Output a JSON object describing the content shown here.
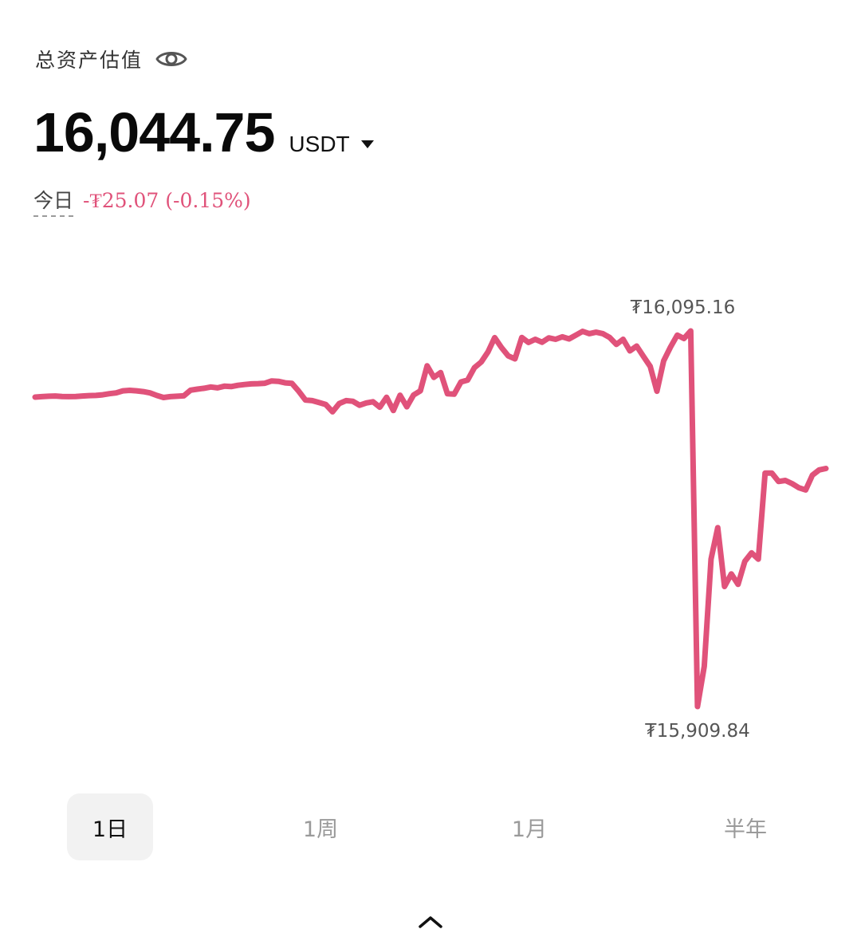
{
  "header": {
    "label": "总资产估值",
    "eye_icon": "eye-icon"
  },
  "balance": {
    "value": "16,044.75",
    "currency": "USDT",
    "caret_icon": "caret-down-icon"
  },
  "today": {
    "label": "今日",
    "change": "-₮25.07 (-0.15%)",
    "change_color": "#e0527a"
  },
  "colors": {
    "line": "#e0527a",
    "active_tab_bg": "#f2f2f2",
    "inactive_tab_text": "#9a9a9a"
  },
  "chart_data": {
    "type": "line",
    "title": "",
    "xlabel": "",
    "ylabel": "",
    "ylim": [
      15909.84,
      16095.16
    ],
    "grid": false,
    "annotations": [
      {
        "text": "₮16,095.16",
        "kind": "max"
      },
      {
        "text": "₮15,909.84",
        "kind": "min"
      }
    ],
    "series": [
      {
        "values": [
          16057.2,
          16057.4,
          16057.6,
          16057.7,
          16057.5,
          16057.4,
          16057.5,
          16057.7,
          16057.9,
          16058.0,
          16058.3,
          16058.8,
          16059.2,
          16060.2,
          16060.4,
          16060.2,
          16059.8,
          16059.2,
          16058.0,
          16057.0,
          16057.4,
          16057.6,
          16057.8,
          16060.5,
          16061.0,
          16061.4,
          16062.0,
          16061.6,
          16062.4,
          16062.2,
          16062.8,
          16063.2,
          16063.5,
          16063.6,
          16063.8,
          16064.9,
          16064.7,
          16064.0,
          16063.7,
          16060.0,
          16055.8,
          16055.5,
          16054.6,
          16053.7,
          16050.2,
          16054.1,
          16055.5,
          16055.2,
          16053.3,
          16054.4,
          16055.0,
          16052.4,
          16057.1,
          16050.8,
          16058.1,
          16052.6,
          16058.2,
          16060.2,
          16072.1,
          16066.6,
          16068.9,
          16058.8,
          16058.6,
          16064.4,
          16065.3,
          16071.2,
          16073.9,
          16078.7,
          16085.5,
          16080.8,
          16076.8,
          16075.4,
          16085.6,
          16083.2,
          16084.7,
          16083.3,
          16085.4,
          16084.7,
          16085.9,
          16084.9,
          16086.7,
          16088.5,
          16087.4,
          16088.1,
          16087.4,
          16085.6,
          16082.3,
          16084.7,
          16079.2,
          16081.5,
          16076.6,
          16071.8,
          16060.0,
          16074.5,
          16081.0,
          16086.7,
          16085.1,
          16088.7,
          15909.84,
          15929.0,
          15980.0,
          15995.0,
          15967.0,
          15973.0,
          15968.0,
          15979.0,
          15983.0,
          15980.0,
          16021.0,
          16021.0,
          16017.0,
          16017.5,
          16016.0,
          16014.0,
          16013.0,
          16020.0,
          16022.5,
          16023.2
        ]
      }
    ]
  },
  "tabs": [
    {
      "label": "1日",
      "active": true
    },
    {
      "label": "1周",
      "active": false
    },
    {
      "label": "1月",
      "active": false
    },
    {
      "label": "半年",
      "active": false
    }
  ],
  "footer": {
    "expand_icon": "chevron-up-icon"
  }
}
